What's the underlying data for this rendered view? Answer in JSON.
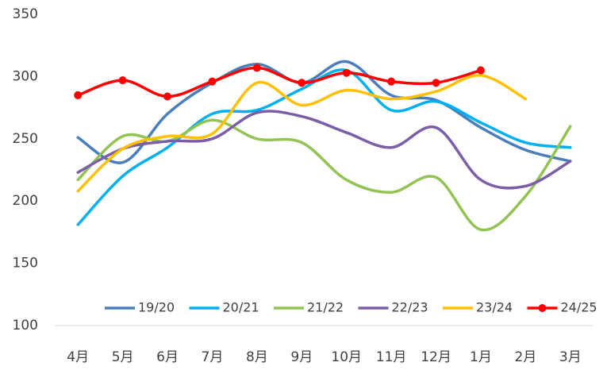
{
  "chart_data": {
    "type": "line",
    "smooth": true,
    "legend": "bottom",
    "categories": [
      "4月",
      "5月",
      "6月",
      "7月",
      "8月",
      "9月",
      "10月",
      "11月",
      "12月",
      "1月",
      "2月",
      "3月"
    ],
    "series": [
      {
        "name": "19/20",
        "color": "#4a7ebb",
        "values": [
          251,
          231,
          270,
          295,
          310,
          295,
          312,
          285,
          281,
          259,
          241,
          232
        ]
      },
      {
        "name": "20/21",
        "color": "#00b0f0",
        "values": [
          181,
          220,
          243,
          270,
          273,
          290,
          305,
          273,
          280,
          263,
          247,
          243
        ]
      },
      {
        "name": "21/22",
        "color": "#92c353",
        "values": [
          217,
          252,
          248,
          265,
          250,
          247,
          217,
          207,
          219,
          177,
          204,
          260
        ]
      },
      {
        "name": "22/23",
        "color": "#7b5ea7",
        "values": [
          223,
          242,
          248,
          250,
          271,
          268,
          255,
          243,
          259,
          217,
          212,
          232
        ]
      },
      {
        "name": "23/24",
        "color": "#ffc000",
        "values": [
          208,
          242,
          252,
          254,
          295,
          277,
          289,
          282,
          288,
          301,
          282,
          null
        ]
      },
      {
        "name": "24/25",
        "color": "#ff0000",
        "marker": true,
        "values": [
          285,
          297,
          284,
          296,
          307,
          295,
          303,
          296,
          295,
          305,
          null,
          null
        ]
      }
    ],
    "ylim": [
      100,
      350
    ],
    "yticks": [
      100,
      150,
      200,
      250,
      300,
      350
    ]
  }
}
